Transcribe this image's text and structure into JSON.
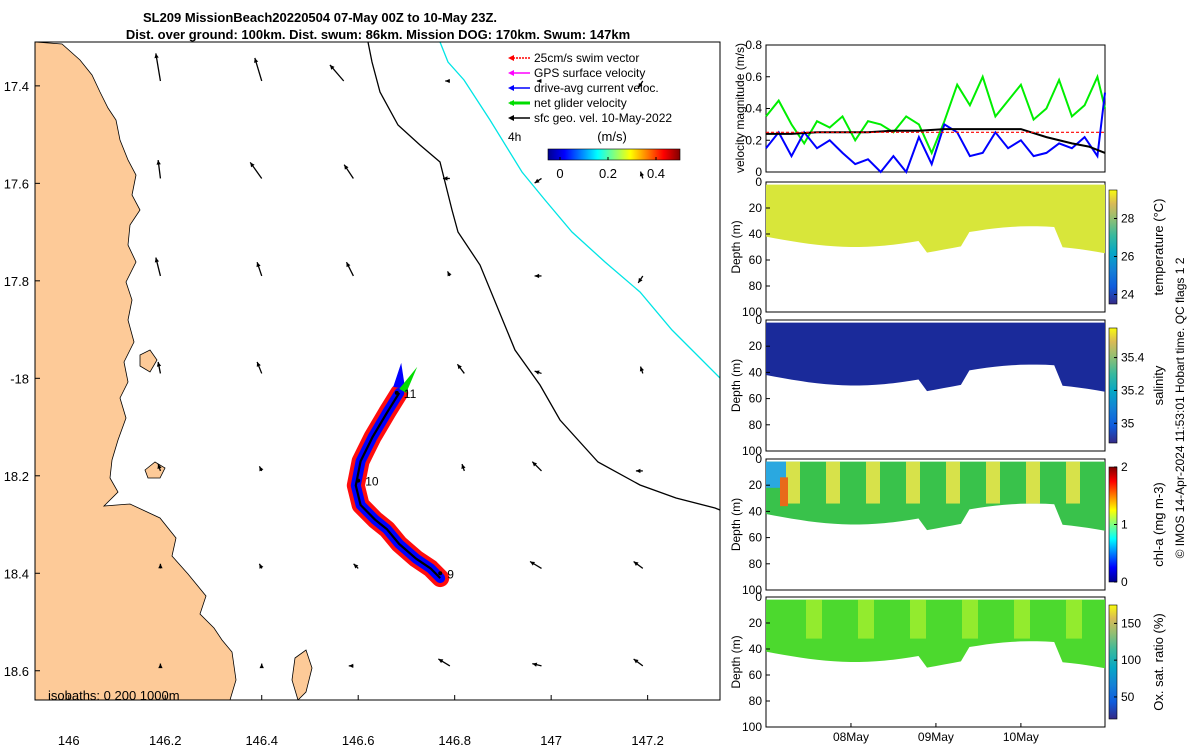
{
  "title_line1": "SL209 MissionBeach20220504 07-May 00Z to 10-May 23Z.",
  "title_line2": "Dist. over ground: 100km. Dist. swum: 86km. Mission DOG: 170km. Swum: 147km",
  "map": {
    "xlim": [
      145.93,
      147.35
    ],
    "ylim": [
      -18.66,
      -17.31
    ],
    "xticks": [
      146,
      146.2,
      146.4,
      146.6,
      146.8,
      147,
      147.2
    ],
    "xtick_labels": [
      "146",
      "146.2",
      "146.4",
      "146.6",
      "146.8",
      "147",
      "147.2"
    ],
    "yticks": [
      -17.4,
      -17.6,
      -17.8,
      -18,
      -18.2,
      -18.4,
      -18.6
    ],
    "ytick_labels": [
      "17.4",
      "17.6",
      "17.8",
      "-18",
      "18.2",
      "18.4",
      "18.6"
    ],
    "isobath_label": "isobaths: 0   200  1000m",
    "legend": [
      {
        "label": "25cm/s swim vector",
        "color": "#ff0000"
      },
      {
        "label": "GPS surface velocity",
        "color": "#ff00ff"
      },
      {
        "label": "drive-avg current veloc.",
        "color": "#0000ff"
      },
      {
        "label": "net glider velocity",
        "color": "#00dd00"
      },
      {
        "label": "sfc geo. vel. 10-May-2022",
        "color": "#000000"
      }
    ],
    "colorbar": {
      "label": "(m/s)",
      "tick_labels": [
        "0",
        "0.2",
        "0.4"
      ],
      "range": [
        -0.05,
        0.5
      ],
      "side_text": "4h"
    },
    "day_labels": [
      "11",
      "10",
      "9"
    ],
    "track": [
      [
        146.685,
        -18.03
      ],
      [
        146.66,
        -18.07
      ],
      [
        146.63,
        -18.12
      ],
      [
        146.605,
        -18.17
      ],
      [
        146.595,
        -18.22
      ],
      [
        146.605,
        -18.26
      ],
      [
        146.635,
        -18.29
      ],
      [
        146.66,
        -18.31
      ],
      [
        146.685,
        -18.34
      ],
      [
        146.72,
        -18.37
      ],
      [
        146.75,
        -18.39
      ],
      [
        146.77,
        -18.41
      ]
    ],
    "track_day_points": [
      [
        146.68,
        -18.03
      ],
      [
        146.6,
        -18.21
      ],
      [
        146.77,
        -18.4
      ]
    ],
    "sfc_vectors": [
      {
        "lon": 146.19,
        "lat": -17.39,
        "u": -0.02,
        "v": 0.12
      },
      {
        "lon": 146.4,
        "lat": -17.39,
        "u": -0.03,
        "v": 0.1
      },
      {
        "lon": 146.57,
        "lat": -17.39,
        "u": -0.06,
        "v": 0.07
      },
      {
        "lon": 146.79,
        "lat": -17.39,
        "u": -0.02,
        "v": 0.0
      },
      {
        "lon": 146.98,
        "lat": -17.39,
        "u": -0.02,
        "v": 0.0
      },
      {
        "lon": 147.19,
        "lat": -17.39,
        "u": -0.02,
        "v": -0.03
      },
      {
        "lon": 146.19,
        "lat": -17.59,
        "u": -0.01,
        "v": 0.08
      },
      {
        "lon": 146.4,
        "lat": -17.59,
        "u": -0.05,
        "v": 0.07
      },
      {
        "lon": 146.59,
        "lat": -17.59,
        "u": -0.04,
        "v": 0.06
      },
      {
        "lon": 146.79,
        "lat": -17.59,
        "u": -0.03,
        "v": 0.0
      },
      {
        "lon": 146.98,
        "lat": -17.59,
        "u": -0.03,
        "v": -0.02
      },
      {
        "lon": 147.19,
        "lat": -17.59,
        "u": -0.01,
        "v": 0.03
      },
      {
        "lon": 146.19,
        "lat": -17.79,
        "u": -0.02,
        "v": 0.08
      },
      {
        "lon": 146.4,
        "lat": -17.79,
        "u": -0.02,
        "v": 0.06
      },
      {
        "lon": 146.59,
        "lat": -17.79,
        "u": -0.03,
        "v": 0.06
      },
      {
        "lon": 146.79,
        "lat": -17.79,
        "u": -0.01,
        "v": 0.02
      },
      {
        "lon": 146.98,
        "lat": -17.79,
        "u": -0.03,
        "v": 0.0
      },
      {
        "lon": 147.19,
        "lat": -17.79,
        "u": -0.02,
        "v": -0.03
      },
      {
        "lon": 146.19,
        "lat": -17.99,
        "u": -0.01,
        "v": 0.05
      },
      {
        "lon": 146.4,
        "lat": -17.99,
        "u": -0.02,
        "v": 0.05
      },
      {
        "lon": 146.82,
        "lat": -17.99,
        "u": -0.03,
        "v": 0.04
      },
      {
        "lon": 146.98,
        "lat": -17.99,
        "u": -0.03,
        "v": 0.01
      },
      {
        "lon": 147.19,
        "lat": -17.99,
        "u": -0.01,
        "v": 0.03
      },
      {
        "lon": 146.19,
        "lat": -18.19,
        "u": -0.01,
        "v": 0.03
      },
      {
        "lon": 146.4,
        "lat": -18.19,
        "u": -0.01,
        "v": 0.02
      },
      {
        "lon": 146.82,
        "lat": -18.19,
        "u": -0.01,
        "v": 0.03
      },
      {
        "lon": 146.98,
        "lat": -18.19,
        "u": -0.04,
        "v": 0.04
      },
      {
        "lon": 147.19,
        "lat": -18.19,
        "u": -0.03,
        "v": 0.0
      },
      {
        "lon": 146.19,
        "lat": -18.39,
        "u": 0.0,
        "v": 0.02
      },
      {
        "lon": 146.4,
        "lat": -18.39,
        "u": -0.01,
        "v": 0.02
      },
      {
        "lon": 146.6,
        "lat": -18.39,
        "u": -0.02,
        "v": 0.02
      },
      {
        "lon": 146.98,
        "lat": -18.39,
        "u": -0.05,
        "v": 0.03
      },
      {
        "lon": 147.19,
        "lat": -18.39,
        "u": -0.04,
        "v": 0.03
      },
      {
        "lon": 146.19,
        "lat": -18.59,
        "u": 0.0,
        "v": 0.01
      },
      {
        "lon": 146.4,
        "lat": -18.59,
        "u": 0.0,
        "v": 0.01
      },
      {
        "lon": 146.59,
        "lat": -18.59,
        "u": -0.02,
        "v": 0.0
      },
      {
        "lon": 146.79,
        "lat": -18.59,
        "u": -0.05,
        "v": 0.03
      },
      {
        "lon": 146.98,
        "lat": -18.59,
        "u": -0.04,
        "v": 0.01
      },
      {
        "lon": 147.19,
        "lat": -18.59,
        "u": -0.04,
        "v": 0.03
      }
    ],
    "colors": {
      "land": "#fdca98",
      "isobath_200": "#000000",
      "isobath_1000": "#00e5e5"
    }
  },
  "chart_data": [
    {
      "type": "line",
      "ylabel": "velocity magnitude (m/s)",
      "ylim": [
        0,
        0.8
      ],
      "yticks": [
        0,
        0.2,
        0.4,
        0.6,
        0.8
      ],
      "tick_labels": [
        "0",
        "0.2",
        "0.4",
        "0.6",
        "0.8"
      ],
      "x_days": [
        7.0,
        10.99
      ],
      "series": [
        {
          "color": "#00ee00",
          "x": [
            7.0,
            7.15,
            7.3,
            7.45,
            7.6,
            7.75,
            7.9,
            8.05,
            8.2,
            8.35,
            8.5,
            8.65,
            8.8,
            8.95,
            9.1,
            9.25,
            9.4,
            9.55,
            9.7,
            9.85,
            10.0,
            10.15,
            10.3,
            10.45,
            10.6,
            10.75,
            10.9,
            10.99
          ],
          "values": [
            0.35,
            0.45,
            0.3,
            0.18,
            0.32,
            0.28,
            0.35,
            0.2,
            0.32,
            0.3,
            0.25,
            0.35,
            0.3,
            0.12,
            0.32,
            0.55,
            0.42,
            0.6,
            0.35,
            0.45,
            0.55,
            0.33,
            0.4,
            0.58,
            0.35,
            0.42,
            0.6,
            0.4
          ]
        },
        {
          "color": "#0000ff",
          "x": [
            7.0,
            7.15,
            7.3,
            7.45,
            7.6,
            7.75,
            7.9,
            8.05,
            8.2,
            8.35,
            8.5,
            8.65,
            8.8,
            8.95,
            9.1,
            9.25,
            9.4,
            9.55,
            9.7,
            9.85,
            10.0,
            10.15,
            10.3,
            10.45,
            10.6,
            10.75,
            10.9,
            10.99
          ],
          "values": [
            0.15,
            0.25,
            0.1,
            0.25,
            0.15,
            0.2,
            0.12,
            0.05,
            0.08,
            0.0,
            0.1,
            0.0,
            0.22,
            0.05,
            0.3,
            0.25,
            0.1,
            0.12,
            0.25,
            0.15,
            0.2,
            0.1,
            0.12,
            0.18,
            0.15,
            0.22,
            0.1,
            0.5
          ]
        },
        {
          "color": "#000000",
          "x": [
            7.0,
            7.3,
            7.6,
            7.9,
            8.2,
            8.5,
            8.8,
            9.1,
            9.4,
            9.7,
            10.0,
            10.3,
            10.6,
            10.8,
            10.99
          ],
          "values": [
            0.24,
            0.24,
            0.25,
            0.25,
            0.25,
            0.26,
            0.26,
            0.27,
            0.27,
            0.27,
            0.27,
            0.22,
            0.18,
            0.16,
            0.12
          ]
        },
        {
          "color": "#ff0000",
          "x": [
            7.0,
            10.99
          ],
          "values": [
            0.25,
            0.25
          ]
        }
      ]
    },
    {
      "type": "heatmap",
      "ylabel": "Depth (m)",
      "cbar_label": "temperature (°C)",
      "yticks": [
        0,
        20,
        40,
        60,
        80,
        100
      ],
      "tick_labels": [
        "0",
        "20",
        "40",
        "60",
        "80",
        "100"
      ],
      "cbar_range": [
        23.5,
        29.5
      ],
      "cbar_ticks": [
        24,
        26,
        28
      ],
      "cbar_tick_labels": [
        "24",
        "26",
        "28"
      ],
      "value_main": 28.5
    },
    {
      "type": "heatmap",
      "ylabel": "Depth (m)",
      "cbar_label": "salinity",
      "yticks": [
        0,
        20,
        40,
        60,
        80,
        100
      ],
      "tick_labels": [
        "0",
        "20",
        "40",
        "60",
        "80",
        "100"
      ],
      "cbar_range": [
        34.88,
        35.58
      ],
      "cbar_ticks": [
        35,
        35.2,
        35.4
      ],
      "cbar_tick_labels": [
        "35",
        "35.2",
        "35.4"
      ],
      "value_main": 34.95
    },
    {
      "type": "heatmap",
      "ylabel": "Depth (m)",
      "cbar_label": "chl-a (mg m-3)",
      "yticks": [
        0,
        20,
        40,
        60,
        80,
        100
      ],
      "tick_labels": [
        "0",
        "20",
        "40",
        "60",
        "80",
        "100"
      ],
      "cbar_range": [
        0,
        2
      ],
      "cbar_ticks": [
        0,
        1,
        2
      ],
      "cbar_tick_labels": [
        "0",
        "1",
        "2"
      ],
      "value_main": 1.0
    },
    {
      "type": "heatmap",
      "ylabel": "Depth (m)",
      "cbar_label": "Ox. sat. ratio (%)",
      "yticks": [
        0,
        20,
        40,
        60,
        80,
        100
      ],
      "tick_labels": [
        "0",
        "20",
        "40",
        "60",
        "80",
        "100"
      ],
      "cbar_range": [
        20,
        175
      ],
      "cbar_ticks": [
        50,
        100,
        150
      ],
      "cbar_tick_labels": [
        "50",
        "100",
        "150"
      ],
      "value_main": 110,
      "x_ticks_days": [
        8,
        9,
        10
      ],
      "x_tick_labels": [
        "08May",
        "09May",
        "10May"
      ]
    }
  ],
  "footer": "© IMOS 14-Apr-2024 11:53:01 Hobart time. QC flags 1  2"
}
